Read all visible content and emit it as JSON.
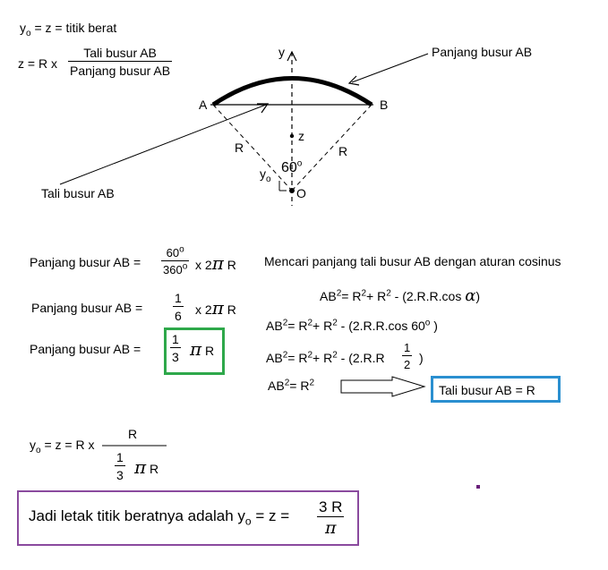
{
  "top_formula": {
    "y0_prefix": "y",
    "y0_sub": "o",
    "line1_rest": " = z = titik berat",
    "line2_prefix": "z = R x",
    "frac_num": "Tali busur AB",
    "frac_den": "Panjang busur AB"
  },
  "diagram": {
    "label_y": "y",
    "label_A": "A",
    "label_B": "B",
    "label_z": "z",
    "label_R_left": "R",
    "label_R_right": "R",
    "label_y0": "y",
    "label_y0_sub": "o",
    "angle": "60",
    "angle_sup": "o",
    "label_O": "O",
    "callout_arc": "Panjang busur AB",
    "callout_chord": "Tali busur AB"
  },
  "left_calc": {
    "row1_label": "Panjang busur AB  =",
    "row1_num": "60",
    "row1_num_sup": "o",
    "row1_den": "360",
    "row1_den_sup": "o",
    "row1_rest_pre": "x 2",
    "row1_pi": "π",
    "row1_rest_post": "R",
    "row2_label": "Panjang busur AB  =",
    "row2_num": "1",
    "row2_den": "6",
    "row2_rest_pre": "x 2",
    "row2_pi": "π",
    "row2_rest_post": "R",
    "row3_label": "Panjang busur AB  =",
    "row3_num": "1",
    "row3_den": "3",
    "row3_pi": "π",
    "row3_rest": "R"
  },
  "right_calc": {
    "heading": "Mencari panjang tali busur AB dengan aturan cosinus",
    "eq1_pre": "AB",
    "eq1_mid": "= R",
    "eq1_mid2": "+ R",
    "eq1_post": "- (2.R.R.cos",
    "eq1_alpha": "α",
    "eq1_close": ")",
    "eq2_pre": "AB",
    "eq2_mid": "= R",
    "eq2_mid2": "+ R",
    "eq2_post": "- (2.R.R.cos 60",
    "eq2_deg": "o",
    "eq2_close": ")",
    "eq3_pre": "AB",
    "eq3_mid": "= R",
    "eq3_mid2": "+ R",
    "eq3_post": "- (2.R.R",
    "eq3_num": "1",
    "eq3_den": "2",
    "eq3_close": ")",
    "eq4_pre": "AB",
    "eq4_mid": "= R",
    "sq": "2",
    "result": "Tali busur AB  = R"
  },
  "bottom_calc": {
    "y0_prefix": "y",
    "y0_sub": "o",
    "eq": "= z =  R x",
    "frac_num": "R",
    "den_num": "1",
    "den_den": "3",
    "den_pi": "π",
    "den_rest": "R"
  },
  "conclusion": {
    "text": "Jadi letak titik beratnya adalah y",
    "sub": "o",
    "eq": " = z =",
    "num": "3 R",
    "den": "π"
  },
  "colors": {
    "green_box": "#2ea84a",
    "blue_box": "#2a8fd0",
    "purple_box": "#8a4a9e",
    "dot": "#6a1f7a"
  }
}
